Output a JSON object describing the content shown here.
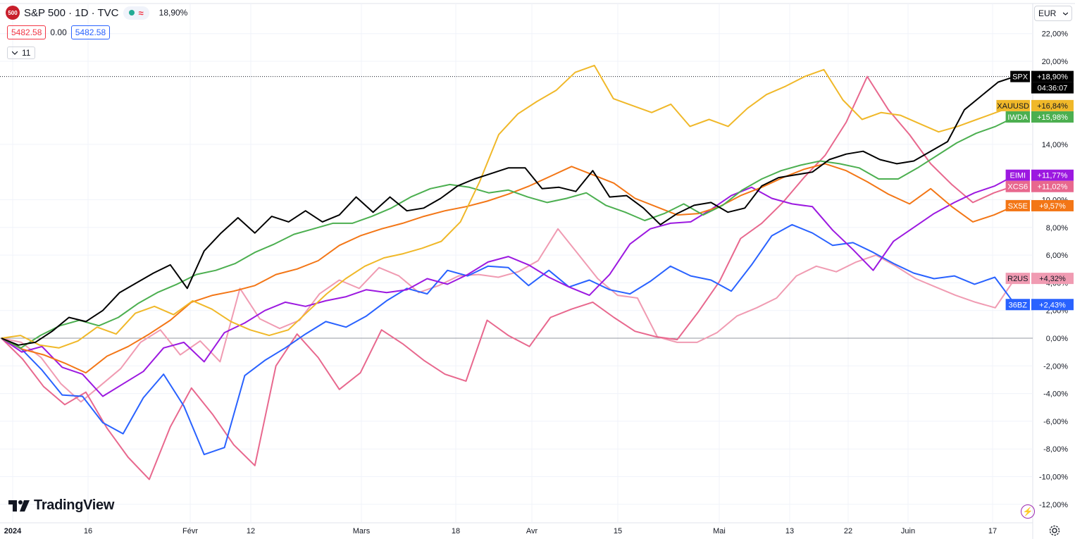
{
  "header": {
    "logo_text": "500",
    "title": "S&P 500 · 1D · TVC",
    "change": "18,90%",
    "price_left": "5482.58",
    "price_mid": "0.00",
    "price_right": "5482.58",
    "indicators_count": "11",
    "currency": "EUR"
  },
  "brand": {
    "name": "TradingView"
  },
  "chart_data": {
    "type": "line",
    "x_labels": [
      "2024",
      "16",
      "Févr",
      "12",
      "Mars",
      "18",
      "Avr",
      "15",
      "Mai",
      "13",
      "22",
      "Juin",
      "17"
    ],
    "y_ticks": [
      "22,00%",
      "20,00%",
      "14,00%",
      "10,00%",
      "8,00%",
      "6,00%",
      "4,00%",
      "2,00%",
      "0,00%",
      "-2,00%",
      "-4,00%",
      "-6,00%",
      "-8,00%",
      "-10,00%",
      "-12,00%"
    ],
    "ylim": [
      -12,
      22
    ],
    "timer": "04:36:07",
    "series": [
      {
        "name": "SPX",
        "label": "+18,90%",
        "color": "#000000",
        "values": [
          0,
          -0.5,
          -0.3,
          0.5,
          1.5,
          1.2,
          2,
          3.3,
          4,
          4.7,
          5.3,
          3.6,
          6.3,
          7.6,
          8.7,
          7.6,
          8.8,
          8.4,
          9.2,
          8.4,
          8.9,
          10.2,
          9.1,
          10.2,
          9.2,
          9.4,
          10.1,
          11,
          11.5,
          11.9,
          12.3,
          12.3,
          10.8,
          10.9,
          10.6,
          12.1,
          10.2,
          10.3,
          9.4,
          8.2,
          9,
          9.6,
          9.8,
          9.1,
          9.4,
          11,
          11.6,
          11.8,
          12,
          12.9,
          13.3,
          13.5,
          12.9,
          12.6,
          12.8,
          13.5,
          14.2,
          16.5,
          17.5,
          18.5,
          18.9
        ]
      },
      {
        "name": "XAUUSD",
        "label": "+16,84%",
        "color": "#f0b829",
        "values": [
          0,
          0.2,
          -0.5,
          -0.7,
          -0.2,
          0.8,
          0.3,
          1.8,
          2.3,
          1.7,
          2.7,
          2.1,
          1.2,
          0.6,
          0.2,
          0.6,
          1.9,
          3.2,
          4.3,
          5.2,
          5.8,
          6.1,
          6.5,
          7,
          8.4,
          11.3,
          14.7,
          16.2,
          17.1,
          17.9,
          19.2,
          19.7,
          17.3,
          16.8,
          16.3,
          16.9,
          15.3,
          15.8,
          15.3,
          16.6,
          17.6,
          18.2,
          18.9,
          19.4,
          17.2,
          15.8,
          16.3,
          16.1,
          15.5,
          14.9,
          15.3,
          15.8,
          16.3,
          16.8
        ]
      },
      {
        "name": "IWDA",
        "label": "+15,98%",
        "color": "#4caf50",
        "values": [
          0,
          -0.7,
          0.2,
          0.9,
          1.3,
          0.9,
          1.5,
          2.5,
          3.3,
          3.9,
          4.6,
          4.9,
          5.4,
          6.2,
          6.8,
          7.5,
          7.9,
          8.3,
          8.3,
          8.8,
          9.4,
          10.2,
          10.8,
          11.1,
          10.9,
          10.5,
          10.7,
          10.2,
          9.8,
          10.1,
          10.5,
          9.6,
          9.1,
          8.5,
          9,
          9.7,
          8.9,
          9.6,
          10.7,
          11.5,
          12.1,
          12.5,
          12.8,
          12.6,
          12.3,
          11.5,
          11.5,
          12.3,
          13.2,
          14.1,
          14.8,
          15.3,
          15.98
        ]
      },
      {
        "name": "EIMI",
        "label": "+11,77%",
        "color": "#9c19e0",
        "values": [
          0,
          -1,
          -0.6,
          -2.1,
          -2.6,
          -4.2,
          -3.3,
          -2.4,
          -0.7,
          -0.3,
          -1.7,
          0.4,
          1.1,
          2,
          2.6,
          2.3,
          2.7,
          3,
          3.5,
          3.3,
          3.5,
          4.3,
          3.9,
          4.6,
          5.5,
          5.9,
          5.3,
          4.4,
          3.7,
          3.1,
          4.6,
          6.8,
          7.9,
          8.3,
          8.4,
          9.3,
          10.3,
          10.9,
          10.1,
          9.7,
          9.5,
          7.8,
          6.4,
          4.9,
          7,
          8,
          9,
          9.8,
          10.5,
          11,
          11.77
        ]
      },
      {
        "name": "XCS6",
        "label": "+11,02%",
        "color": "#e8688e",
        "values": [
          0,
          -1.5,
          -3.5,
          -4.8,
          -3.9,
          -6.5,
          -8.6,
          -10.2,
          -6.4,
          -3.6,
          -5.5,
          -7.7,
          -9.2,
          -2,
          0.3,
          -1.4,
          -3.7,
          -2.5,
          0.6,
          -0.4,
          -1.6,
          -2.6,
          -3.1,
          1.3,
          0.2,
          -0.6,
          1.5,
          2.1,
          2.6,
          1.5,
          0.5,
          0.1,
          -0.1,
          1.9,
          4.1,
          7.2,
          8.3,
          9.8,
          11.6,
          13.2,
          15.6,
          18.9,
          16.5,
          14.7,
          12.6,
          11.1,
          9.8,
          10.5,
          11.02
        ]
      },
      {
        "name": "SX5E",
        "label": "+9,57%",
        "color": "#f37616",
        "values": [
          0,
          -0.8,
          -1.2,
          -1.8,
          -2.5,
          -1.3,
          -0.6,
          0.3,
          1.3,
          2.6,
          3.1,
          3.4,
          3.8,
          4.6,
          5,
          5.6,
          6.7,
          7.4,
          7.9,
          8.3,
          8.8,
          9.2,
          9.5,
          9.9,
          10.4,
          11,
          11.7,
          12.4,
          11.8,
          11.2,
          10.1,
          9.5,
          8.9,
          9,
          9.5,
          10.3,
          10.9,
          11.6,
          12.2,
          12.6,
          12.1,
          11.3,
          10.4,
          9.7,
          10.8,
          9.5,
          8.4,
          8.9,
          9.57
        ]
      },
      {
        "name": "R2US",
        "label": "+4,32%",
        "color": "#f09bb2",
        "values": [
          0,
          -0.3,
          -1.4,
          -3.3,
          -4.6,
          -3.4,
          -2.2,
          -0.3,
          0.6,
          -1.2,
          -0.2,
          -1.7,
          3.6,
          1.4,
          0.7,
          1.3,
          3.2,
          4.2,
          3.6,
          5.1,
          4.5,
          3.3,
          3.8,
          4.5,
          4.6,
          4.4,
          4.8,
          5.6,
          7.9,
          6.1,
          4.3,
          3.1,
          2.9,
          0.1,
          -0.3,
          -0.3,
          0.4,
          1.6,
          2.2,
          2.9,
          4.5,
          5.2,
          4.8,
          5.5,
          6,
          5.2,
          4.3,
          3.7,
          3.1,
          2.6,
          2.2,
          4.32
        ]
      },
      {
        "name": "36BZ",
        "label": "+2,43%",
        "color": "#2962ff",
        "values": [
          0,
          -0.8,
          -2.3,
          -4.1,
          -4.2,
          -6.1,
          -6.9,
          -4.3,
          -2.6,
          -4.9,
          -8.4,
          -7.9,
          -2.7,
          -1.6,
          -0.7,
          0.3,
          1.2,
          0.8,
          1.6,
          2.7,
          3.6,
          3.2,
          4.9,
          4.5,
          5.2,
          5.1,
          3.8,
          4.9,
          3.7,
          4.2,
          3.5,
          3.2,
          4.1,
          5.2,
          4.5,
          4.2,
          3.4,
          5.3,
          7.4,
          8.2,
          7.6,
          6.7,
          6.9,
          6.2,
          5.4,
          4.7,
          4.3,
          4.5,
          3.9,
          4.4,
          2.43
        ]
      }
    ]
  }
}
